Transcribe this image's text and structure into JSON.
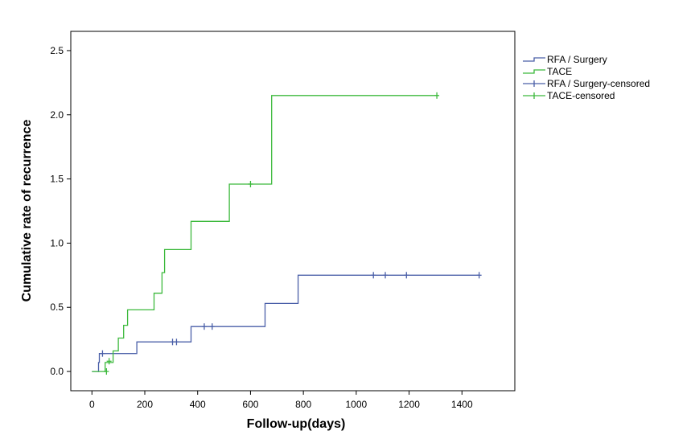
{
  "chart_data": {
    "type": "line",
    "subtype": "step",
    "title": "",
    "xlabel": "Follow-up(days)",
    "ylabel": "Cumulative rate of recurrence",
    "xlim": [
      -80,
      1600
    ],
    "ylim": [
      -0.15,
      2.65
    ],
    "xticks": [
      0,
      200,
      400,
      600,
      800,
      1000,
      1200,
      1400
    ],
    "yticks": [
      0.0,
      0.5,
      1.0,
      1.5,
      2.0,
      2.5
    ],
    "ytick_labels": [
      "0.0",
      "0.5",
      "1.0",
      "1.5",
      "2.0",
      "2.5"
    ],
    "grid": false,
    "legend_position": "right",
    "series": [
      {
        "name": "RFA / Surgery",
        "color": "#4a5fa8",
        "steps": [
          [
            0,
            0.0
          ],
          [
            25,
            0.0
          ],
          [
            25,
            0.07
          ],
          [
            28,
            0.07
          ],
          [
            28,
            0.14
          ],
          [
            170,
            0.14
          ],
          [
            170,
            0.23
          ],
          [
            375,
            0.23
          ],
          [
            375,
            0.35
          ],
          [
            655,
            0.35
          ],
          [
            655,
            0.53
          ],
          [
            780,
            0.53
          ],
          [
            780,
            0.75
          ],
          [
            1465,
            0.75
          ]
        ],
        "censored": [
          [
            40,
            0.14
          ],
          [
            305,
            0.23
          ],
          [
            320,
            0.23
          ],
          [
            425,
            0.35
          ],
          [
            455,
            0.35
          ],
          [
            1065,
            0.75
          ],
          [
            1110,
            0.75
          ],
          [
            1190,
            0.75
          ],
          [
            1465,
            0.75
          ]
        ]
      },
      {
        "name": "TACE",
        "color": "#3cb93c",
        "steps": [
          [
            0,
            0.0
          ],
          [
            50,
            0.0
          ],
          [
            50,
            0.07
          ],
          [
            80,
            0.07
          ],
          [
            80,
            0.16
          ],
          [
            100,
            0.16
          ],
          [
            100,
            0.26
          ],
          [
            120,
            0.26
          ],
          [
            120,
            0.36
          ],
          [
            135,
            0.36
          ],
          [
            135,
            0.48
          ],
          [
            235,
            0.48
          ],
          [
            235,
            0.61
          ],
          [
            265,
            0.61
          ],
          [
            265,
            0.77
          ],
          [
            275,
            0.77
          ],
          [
            275,
            0.95
          ],
          [
            375,
            0.95
          ],
          [
            375,
            1.17
          ],
          [
            520,
            1.17
          ],
          [
            520,
            1.46
          ],
          [
            680,
            1.46
          ],
          [
            680,
            2.15
          ],
          [
            1310,
            2.15
          ]
        ],
        "censored": [
          [
            55,
            0.0
          ],
          [
            65,
            0.08
          ],
          [
            600,
            1.46
          ],
          [
            1305,
            2.15
          ]
        ]
      }
    ],
    "legend": [
      {
        "label": "RFA / Surgery",
        "kind": "line",
        "color": "#4a5fa8"
      },
      {
        "label": "TACE",
        "kind": "line",
        "color": "#3cb93c"
      },
      {
        "label": "RFA / Surgery-censored",
        "kind": "censor",
        "color": "#4a5fa8"
      },
      {
        "label": "TACE-censored",
        "kind": "censor",
        "color": "#3cb93c"
      }
    ]
  }
}
